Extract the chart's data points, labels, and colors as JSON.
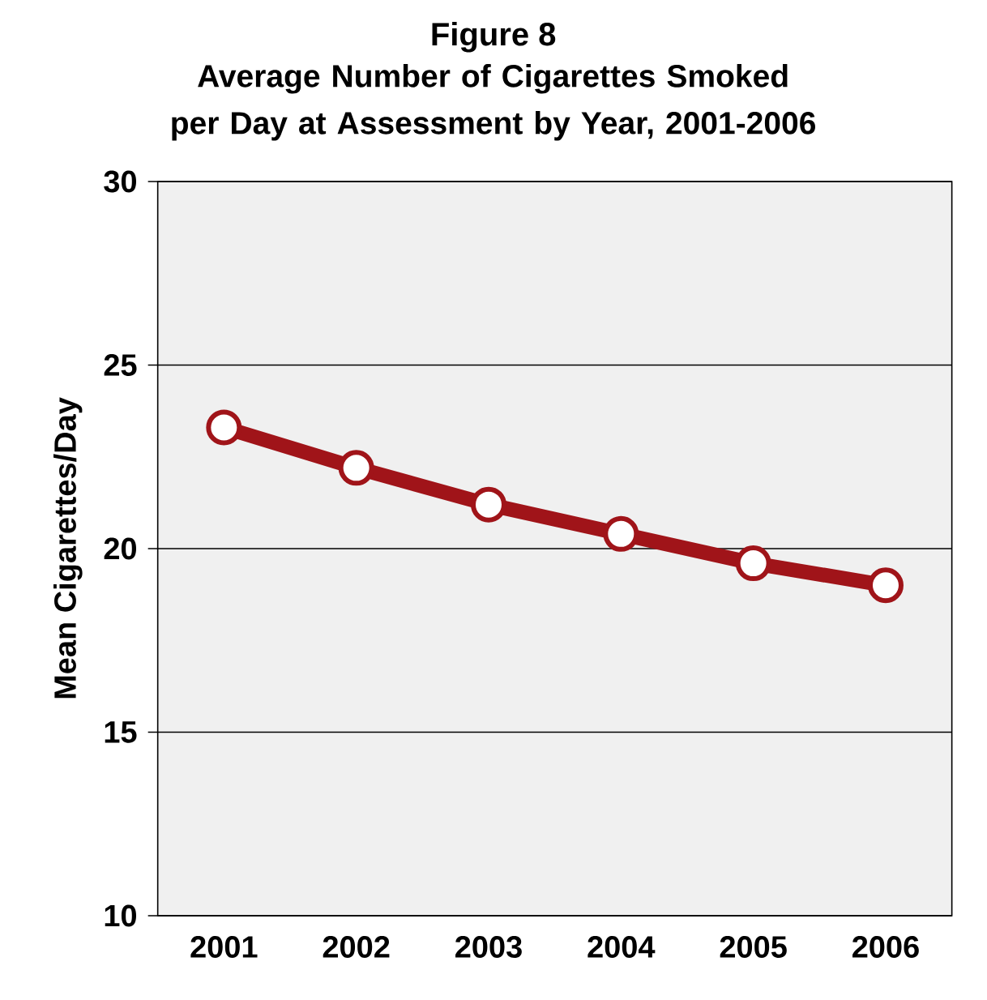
{
  "chart_data": {
    "type": "line",
    "title": "Figure 8",
    "subtitle": "Average Number of Cigarettes Smoked per Day at Assessment by Year, 2001-2006",
    "ylabel": "Mean Cigarettes/Day",
    "categories": [
      "2001",
      "2002",
      "2003",
      "2004",
      "2005",
      "2006"
    ],
    "series": [
      {
        "color": "#a01419",
        "values": [
          23.3,
          22.2,
          21.2,
          20.4,
          19.6,
          19.0
        ]
      }
    ],
    "ylim": [
      10,
      30
    ],
    "yticks": [
      10,
      15,
      20,
      25,
      30
    ],
    "grid": "y",
    "marker": "circle",
    "line_style": "solid"
  }
}
